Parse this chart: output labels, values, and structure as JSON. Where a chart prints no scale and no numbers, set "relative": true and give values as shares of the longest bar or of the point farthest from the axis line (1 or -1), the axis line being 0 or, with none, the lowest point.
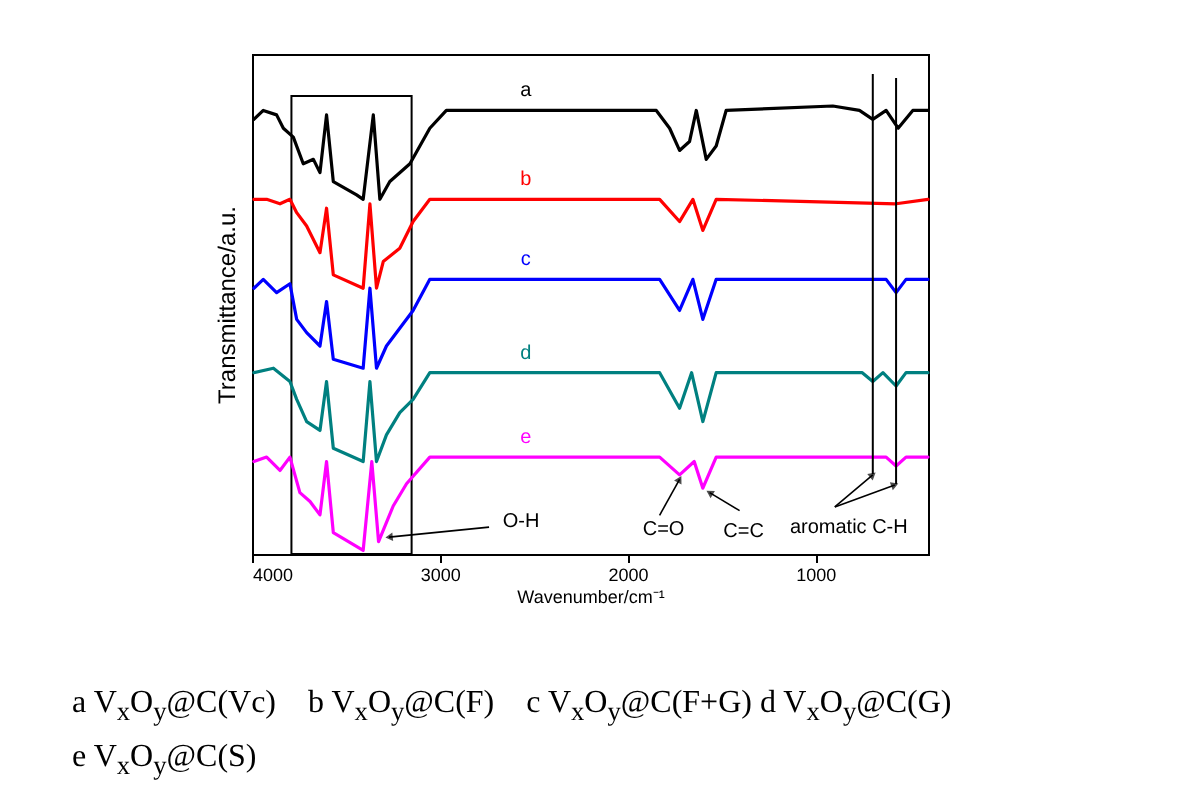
{
  "chart_data": {
    "type": "line",
    "relative": true,
    "xlabel": "Wavenumber/cm⁻¹",
    "ylabel": "Transmittance/a.u.",
    "xlim": [
      4000,
      400
    ],
    "xticks": [
      4000,
      3000,
      2000,
      1000
    ],
    "series": [
      {
        "name": "a",
        "color": "#000000",
        "x": [
          3990,
          3940,
          3869,
          3833,
          3780,
          3727,
          3673,
          3638,
          3603,
          3567,
          3443,
          3408,
          3354,
          3319,
          3266,
          3159,
          3053,
          2965,
          2875,
          1847,
          1776,
          1723,
          1670,
          1634,
          1581,
          1528,
          1475,
          907,
          765,
          694,
          623,
          559,
          481,
          400
        ],
        "values": [
          0.97,
          0.99,
          0.98,
          0.95,
          0.93,
          0.87,
          0.88,
          0.85,
          0.98,
          0.83,
          0.8,
          0.79,
          0.98,
          0.79,
          0.83,
          0.87,
          0.95,
          0.99,
          0.99,
          0.99,
          0.95,
          0.9,
          0.92,
          0.99,
          0.88,
          0.91,
          0.99,
          1.0,
          0.99,
          0.97,
          0.99,
          0.95,
          0.99,
          0.99
        ]
      },
      {
        "name": "b",
        "color": "#ff0000",
        "x": [
          3990,
          3922,
          3851,
          3798,
          3762,
          3709,
          3638,
          3603,
          3567,
          3408,
          3372,
          3337,
          3301,
          3213,
          3142,
          3053,
          1829,
          1723,
          1652,
          1599,
          1528,
          570,
          400
        ],
        "values": [
          0.79,
          0.79,
          0.78,
          0.79,
          0.76,
          0.73,
          0.67,
          0.77,
          0.62,
          0.59,
          0.78,
          0.59,
          0.65,
          0.68,
          0.74,
          0.79,
          0.79,
          0.74,
          0.79,
          0.72,
          0.79,
          0.78,
          0.79
        ]
      },
      {
        "name": "c",
        "color": "#0000ff",
        "x": [
          3990,
          3940,
          3869,
          3798,
          3762,
          3709,
          3638,
          3603,
          3567,
          3408,
          3372,
          3337,
          3284,
          3213,
          3142,
          3053,
          1829,
          1723,
          1652,
          1599,
          1528,
          623,
          570,
          517,
          400
        ],
        "values": [
          0.59,
          0.61,
          0.58,
          0.6,
          0.52,
          0.49,
          0.46,
          0.56,
          0.43,
          0.41,
          0.59,
          0.41,
          0.46,
          0.5,
          0.54,
          0.61,
          0.61,
          0.54,
          0.61,
          0.52,
          0.61,
          0.61,
          0.58,
          0.61,
          0.61
        ]
      },
      {
        "name": "d",
        "color": "#008080",
        "x": [
          3990,
          3886,
          3798,
          3762,
          3709,
          3638,
          3603,
          3567,
          3408,
          3372,
          3337,
          3284,
          3213,
          3142,
          3053,
          1829,
          1723,
          1659,
          1599,
          1528,
          750,
          694,
          640,
          570,
          517,
          400
        ],
        "values": [
          0.4,
          0.41,
          0.38,
          0.34,
          0.29,
          0.27,
          0.38,
          0.23,
          0.2,
          0.38,
          0.2,
          0.26,
          0.31,
          0.34,
          0.4,
          0.4,
          0.32,
          0.4,
          0.29,
          0.4,
          0.4,
          0.38,
          0.4,
          0.37,
          0.4,
          0.4
        ]
      },
      {
        "name": "e",
        "color": "#ff00ff",
        "x": [
          3990,
          3922,
          3851,
          3798,
          3745,
          3691,
          3638,
          3603,
          3567,
          3408,
          3362,
          3326,
          3248,
          3177,
          3053,
          1829,
          1723,
          1645,
          1599,
          1528,
          623,
          570,
          517,
          400
        ],
        "values": [
          0.2,
          0.21,
          0.18,
          0.21,
          0.13,
          0.11,
          0.08,
          0.2,
          0.04,
          0.0,
          0.2,
          0.02,
          0.1,
          0.15,
          0.21,
          0.21,
          0.17,
          0.2,
          0.14,
          0.21,
          0.21,
          0.19,
          0.21,
          0.21
        ]
      }
    ],
    "bands": [
      {
        "axis": "x",
        "from": 3790,
        "to": 3150,
        "color": "#ffffff"
      }
    ],
    "ref_lines": [
      {
        "axis": "x",
        "value": 694
      },
      {
        "axis": "x",
        "value": 570
      }
    ],
    "annotations": [
      {
        "text": "O-H",
        "x": 3270,
        "y": 0.03
      },
      {
        "text": "C=O",
        "x": 1723,
        "y": 0.16
      },
      {
        "text": "C=C",
        "x": 1563,
        "y": 0.13
      },
      {
        "text": "aromatic C-H",
        "x": 694,
        "y": 0.17
      },
      "a V$_{x}$O$_{y}$@C(Vc)    b V$_{x}$O$_{y}$@C(F)    c V$_{x}$O$_{y}$@C(F+G) d V$_{x}$O$_{y}$@C(G)",
      "e V$_{x}$O$_{y}$@C(S)"
    ]
  }
}
